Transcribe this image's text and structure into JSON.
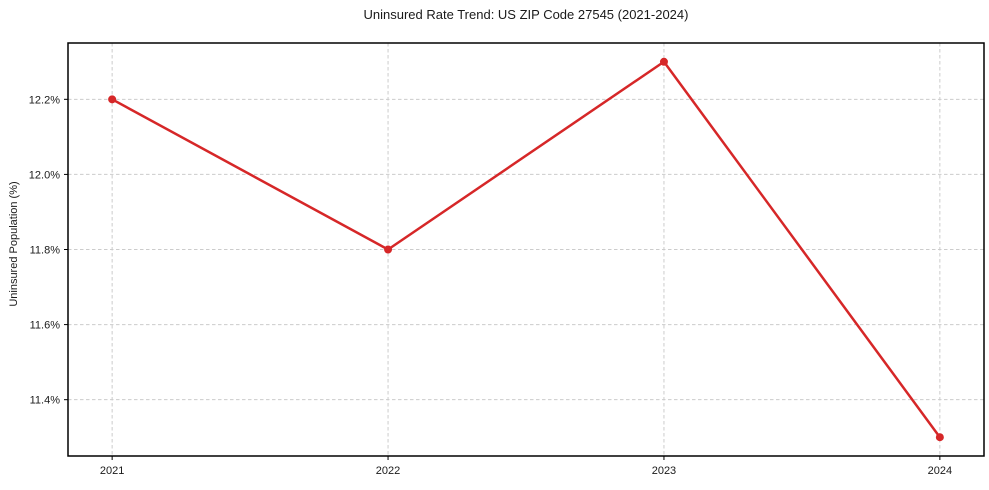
{
  "chart_data": {
    "type": "line",
    "title": "Uninsured Rate Trend: US ZIP Code 27545 (2021-2024)",
    "xlabel": "",
    "ylabel": "Uninsured Population (%)",
    "categories": [
      2021,
      2022,
      2023,
      2024
    ],
    "xtick_labels": [
      "2021",
      "2022",
      "2023",
      "2024"
    ],
    "values": [
      12.2,
      11.8,
      12.3,
      11.3
    ],
    "yticks": [
      11.4,
      11.6,
      11.8,
      12.0,
      12.2
    ],
    "ytick_labels": [
      "11.4%",
      "11.6%",
      "11.8%",
      "12.0%",
      "12.2%"
    ],
    "xlim": [
      2020.84,
      2024.16
    ],
    "ylim": [
      11.25,
      12.35
    ],
    "grid": true,
    "grid_style": "dashed",
    "legend_position": "none",
    "line_color": "#d62728",
    "marker": "circle",
    "grid_color": "#cccccc",
    "background_color": "#ffffff",
    "spine_color": "#000000"
  }
}
